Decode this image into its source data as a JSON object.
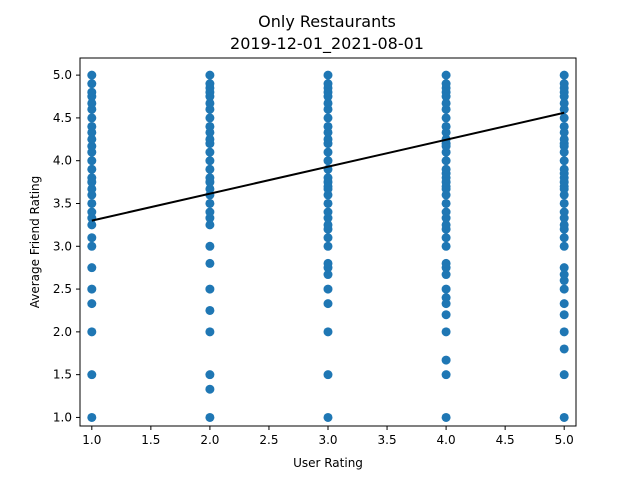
{
  "chart_data": {
    "type": "scatter",
    "title": "Only Restaurants",
    "subtitle": "2019-12-01_2021-08-01",
    "xlabel": "User Rating",
    "ylabel": "Average Friend Rating",
    "xlim": [
      0.9,
      5.1
    ],
    "ylim": [
      0.9,
      5.2
    ],
    "xticks": [
      1.0,
      1.5,
      2.0,
      2.5,
      3.0,
      3.5,
      4.0,
      4.5,
      5.0
    ],
    "xtick_labels": [
      "1.0",
      "1.5",
      "2.0",
      "2.5",
      "3.0",
      "3.5",
      "4.0",
      "4.5",
      "5.0"
    ],
    "yticks": [
      1.0,
      1.5,
      2.0,
      2.5,
      3.0,
      3.5,
      4.0,
      4.5,
      5.0
    ],
    "ytick_labels": [
      "1.0",
      "1.5",
      "2.0",
      "2.5",
      "3.0",
      "3.5",
      "4.0",
      "4.5",
      "5.0"
    ],
    "grid": false,
    "point_color": "#1f77b4",
    "line_color": "#000000",
    "series": [
      {
        "x": 1.0,
        "y": [
          1.0,
          1.5,
          2.0,
          2.33,
          2.5,
          2.75,
          3.0,
          3.1,
          3.25,
          3.33,
          3.4,
          3.5,
          3.6,
          3.67,
          3.75,
          3.8,
          3.9,
          4.0,
          4.1,
          4.17,
          4.25,
          4.33,
          4.4,
          4.5,
          4.6,
          4.67,
          4.75,
          4.8,
          4.9,
          5.0
        ]
      },
      {
        "x": 2.0,
        "y": [
          1.0,
          1.33,
          1.5,
          2.0,
          2.25,
          2.5,
          2.8,
          3.0,
          3.25,
          3.33,
          3.4,
          3.5,
          3.6,
          3.67,
          3.75,
          3.8,
          3.9,
          4.0,
          4.1,
          4.2,
          4.25,
          4.33,
          4.4,
          4.5,
          4.6,
          4.67,
          4.75,
          4.8,
          4.85,
          4.9,
          5.0
        ]
      },
      {
        "x": 3.0,
        "y": [
          1.0,
          1.5,
          2.0,
          2.33,
          2.5,
          2.67,
          2.75,
          2.8,
          3.0,
          3.1,
          3.2,
          3.25,
          3.33,
          3.4,
          3.5,
          3.6,
          3.67,
          3.7,
          3.75,
          3.8,
          3.9,
          4.0,
          4.1,
          4.2,
          4.25,
          4.33,
          4.4,
          4.5,
          4.6,
          4.67,
          4.75,
          4.8,
          4.85,
          4.9,
          5.0
        ]
      },
      {
        "x": 4.0,
        "y": [
          1.0,
          1.5,
          1.67,
          2.0,
          2.2,
          2.33,
          2.4,
          2.5,
          2.67,
          2.75,
          2.8,
          3.0,
          3.1,
          3.2,
          3.25,
          3.33,
          3.4,
          3.5,
          3.6,
          3.67,
          3.7,
          3.75,
          3.8,
          3.85,
          3.9,
          4.0,
          4.1,
          4.17,
          4.2,
          4.25,
          4.33,
          4.4,
          4.5,
          4.6,
          4.67,
          4.75,
          4.8,
          4.85,
          4.9,
          5.0
        ]
      },
      {
        "x": 5.0,
        "y": [
          1.0,
          1.5,
          1.8,
          2.0,
          2.2,
          2.33,
          2.5,
          2.6,
          2.67,
          2.75,
          3.0,
          3.1,
          3.2,
          3.25,
          3.33,
          3.4,
          3.5,
          3.6,
          3.67,
          3.7,
          3.75,
          3.8,
          3.85,
          3.9,
          4.0,
          4.1,
          4.17,
          4.2,
          4.25,
          4.33,
          4.4,
          4.5,
          4.6,
          4.67,
          4.75,
          4.8,
          4.85,
          4.9,
          5.0
        ]
      }
    ],
    "trendline": {
      "x": [
        1.0,
        5.0
      ],
      "y": [
        3.3,
        4.56
      ]
    }
  }
}
